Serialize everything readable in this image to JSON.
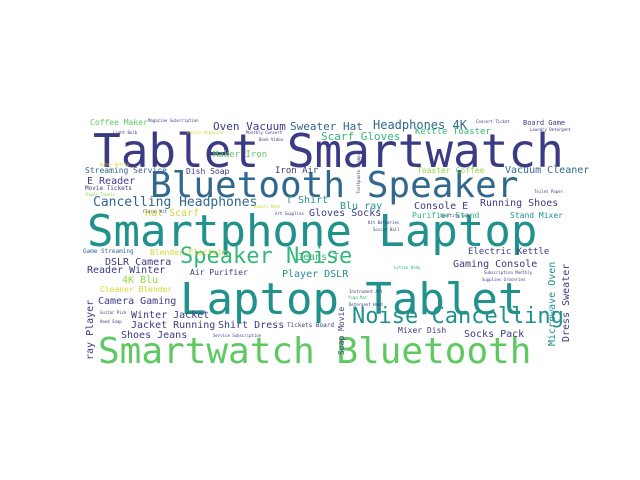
{
  "palette": {
    "dark_purple": "#440154",
    "indigo": "#3b3b85",
    "blue": "#31688e",
    "teal": "#21918c",
    "green": "#35b779",
    "light_green": "#5ec962",
    "lime": "#90d743",
    "yellow": "#cfd834"
  },
  "words": [
    {
      "text": "Tablet Smartwatch",
      "color": "#3b3b85"
    },
    {
      "text": "Bluetooth Speaker",
      "color": "#31688e"
    },
    {
      "text": "Smartphone Laptop",
      "color": "#21918c"
    },
    {
      "text": "Laptop Tablet",
      "color": "#21918c"
    },
    {
      "text": "Smartwatch Bluetooth",
      "color": "#5ec962"
    },
    {
      "text": "Speaker Noise",
      "color": "#35b779"
    },
    {
      "text": "Noise Cancelling",
      "color": "#21918c"
    },
    {
      "text": "Cancelling Headphones",
      "color": "#31688e"
    },
    {
      "text": "Sweater Hat",
      "color": "#31688e"
    },
    {
      "text": "Headphones 4K",
      "color": "#31688e"
    },
    {
      "text": "Oven Vacuum",
      "color": "#3b3b85"
    },
    {
      "text": "Scarf Gloves",
      "color": "#35b779"
    },
    {
      "text": "Kettle Toaster",
      "color": "#35b779"
    },
    {
      "text": "Coffee Maker",
      "color": "#5ec962"
    },
    {
      "text": "Board Game",
      "color": "#3b3b85"
    },
    {
      "text": "Maker Iron",
      "color": "#5ec962"
    },
    {
      "text": "Iron Air",
      "color": "#3b3b85"
    },
    {
      "text": "Toaster Coffee",
      "color": "#90d743"
    },
    {
      "text": "Vacuum Cleaner",
      "color": "#31688e"
    },
    {
      "text": "Dish Soap",
      "color": "#3b3b85"
    },
    {
      "text": "Streaming Service",
      "color": "#31688e"
    },
    {
      "text": "E Reader",
      "color": "#3b3b85"
    },
    {
      "text": "Hat Scarf",
      "color": "#cfd834"
    },
    {
      "text": "T Shirt",
      "color": "#21918c"
    },
    {
      "text": "Blu ray",
      "color": "#21918c"
    },
    {
      "text": "Console E",
      "color": "#3b3b85"
    },
    {
      "text": "Running Shoes",
      "color": "#3b3b85"
    },
    {
      "text": "Gloves Socks",
      "color": "#3b3b85"
    },
    {
      "text": "Purifier Stand",
      "color": "#35b779"
    },
    {
      "text": "Stand Mixer",
      "color": "#21918c"
    },
    {
      "text": "Blender Electric",
      "color": "#cfd834"
    },
    {
      "text": "DSLR Camera",
      "color": "#3b3b85"
    },
    {
      "text": "Electric Kettle",
      "color": "#3b3b85"
    },
    {
      "text": "Gaming Console",
      "color": "#3b3b85"
    },
    {
      "text": "Reader Winter",
      "color": "#3b3b85"
    },
    {
      "text": "Player DSLR",
      "color": "#21918c"
    },
    {
      "text": "Jeans T",
      "color": "#35b779"
    },
    {
      "text": "4K Blu",
      "color": "#90d743"
    },
    {
      "text": "Cleaner Blender",
      "color": "#cfd834"
    },
    {
      "text": "Air Purifier",
      "color": "#3b3b85"
    },
    {
      "text": "Camera Gaming",
      "color": "#3b3b85"
    },
    {
      "text": "Winter Jacket",
      "color": "#3b3b85"
    },
    {
      "text": "Jacket Running",
      "color": "#3b3b85"
    },
    {
      "text": "Shirt Dress",
      "color": "#3b3b85"
    },
    {
      "text": "Shoes Jeans",
      "color": "#3b3b85"
    },
    {
      "text": "Socks Pack",
      "color": "#3b3b85"
    },
    {
      "text": "Mixer Dish",
      "color": "#3b3b85"
    },
    {
      "text": "Tickets Board",
      "color": "#3b3b85"
    },
    {
      "text": "Game Streaming",
      "color": "#31688e"
    },
    {
      "text": "Movie Tickets",
      "color": "#3b3b85"
    },
    {
      "text": "ray Player",
      "color": "#3b3b85"
    },
    {
      "text": "Microwave Oven",
      "color": "#21918c"
    },
    {
      "text": "Dress Sweater",
      "color": "#3b3b85"
    },
    {
      "text": "Soap Movie",
      "color": "#3b3b85"
    },
    {
      "text": "Magazine Subscription",
      "color": "#3b3b85"
    },
    {
      "text": "Light Bulb",
      "color": "#3b3b85"
    },
    {
      "text": "Laundry Detergent",
      "color": "#3b3b85"
    },
    {
      "text": "Monthly Concert",
      "color": "#3b3b85"
    },
    {
      "text": "Book Video",
      "color": "#3b3b85"
    },
    {
      "text": "Puzzle Magazine",
      "color": "#cfd834"
    },
    {
      "text": "Concert Ticket",
      "color": "#3b3b85"
    },
    {
      "text": "Toothpaste Shampoo",
      "color": "#3b3b85"
    },
    {
      "text": "Toilet Paper",
      "color": "#3b3b85"
    },
    {
      "text": "Paper Towels",
      "color": "#90d743"
    },
    {
      "text": "Art Supplies",
      "color": "#3b3b85"
    },
    {
      "text": "Beauty Mask",
      "color": "#cfd834"
    },
    {
      "text": "Kit Batteries",
      "color": "#3b3b85"
    },
    {
      "text": "Soccer Ball",
      "color": "#3b3b85"
    },
    {
      "text": "Subscription Monthly",
      "color": "#3b3b85"
    },
    {
      "text": "Supplies Groceries",
      "color": "#3b3b85"
    },
    {
      "text": "Instrument Art",
      "color": "#3b3b85"
    },
    {
      "text": "Detergent Hand",
      "color": "#3b3b85"
    },
    {
      "text": "Service Subscription",
      "color": "#3b3b85"
    },
    {
      "text": "Hand Soap",
      "color": "#3b3b85"
    },
    {
      "text": "Guitar Pick",
      "color": "#3b3b85"
    },
    {
      "text": "Lotion Body",
      "color": "#35b779"
    },
    {
      "text": "Yoga Mat",
      "color": "#35b779"
    },
    {
      "text": "Floral Kit",
      "color": "#3b3b85"
    },
    {
      "text": "Sporting Gear",
      "color": "#3b3b85"
    },
    {
      "text": "Water Bottle",
      "color": "#cfd834"
    }
  ]
}
